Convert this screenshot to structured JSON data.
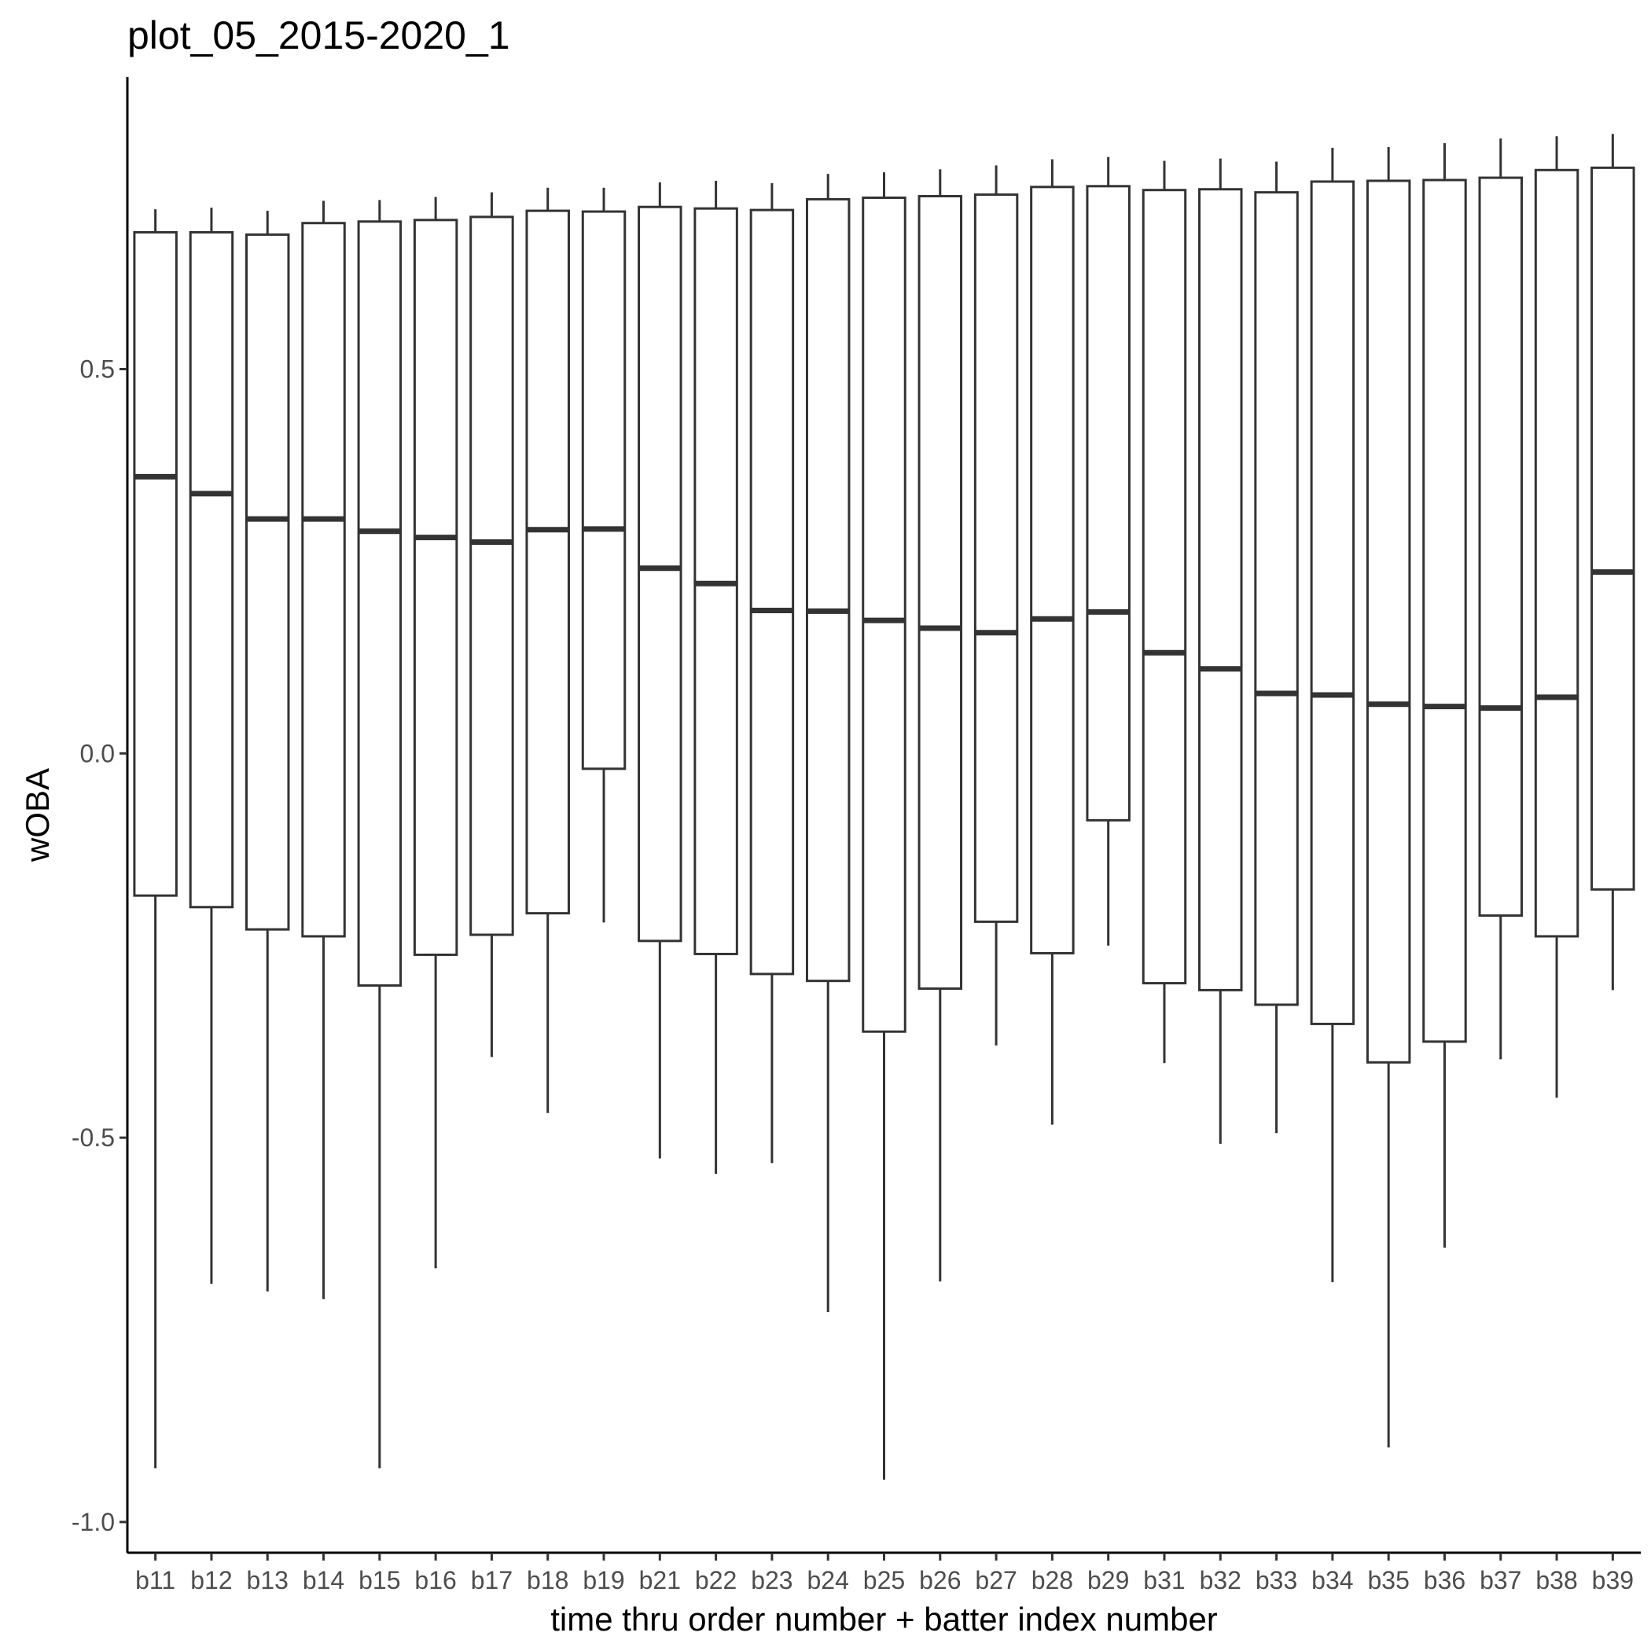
{
  "chart_data": {
    "type": "boxplot",
    "title": "plot_05_2015-2020_1",
    "xlabel": "time thru order number + batter index number",
    "ylabel": "wOBA",
    "ylim": [
      -1.04,
      0.88
    ],
    "yticks": [
      0.5,
      0.0,
      -0.5,
      -1.0
    ],
    "ytick_labels": [
      "0.5",
      "0.0",
      "-0.5",
      "-1.0"
    ],
    "grid": false,
    "legend": "none",
    "colors": {
      "box_stroke": "#333333",
      "box_fill": "#ffffff",
      "axis": "#000000",
      "tick_text": "#4d4d4d"
    },
    "categories": [
      "b11",
      "b12",
      "b13",
      "b14",
      "b15",
      "b16",
      "b17",
      "b18",
      "b19",
      "b21",
      "b22",
      "b23",
      "b24",
      "b25",
      "b26",
      "b27",
      "b28",
      "b29",
      "b31",
      "b32",
      "b33",
      "b34",
      "b35",
      "b36",
      "b37",
      "b38",
      "b39"
    ],
    "boxes": [
      {
        "whisker_low": -0.93,
        "q1": -0.185,
        "median": 0.36,
        "q3": 0.678,
        "whisker_high": 0.708
      },
      {
        "whisker_low": -0.69,
        "q1": -0.2,
        "median": 0.338,
        "q3": 0.678,
        "whisker_high": 0.71
      },
      {
        "whisker_low": -0.7,
        "q1": -0.229,
        "median": 0.305,
        "q3": 0.675,
        "whisker_high": 0.706
      },
      {
        "whisker_low": -0.71,
        "q1": -0.238,
        "median": 0.305,
        "q3": 0.69,
        "whisker_high": 0.719
      },
      {
        "whisker_low": -0.93,
        "q1": -0.302,
        "median": 0.289,
        "q3": 0.692,
        "whisker_high": 0.72
      },
      {
        "whisker_low": -0.67,
        "q1": -0.262,
        "median": 0.281,
        "q3": 0.694,
        "whisker_high": 0.724
      },
      {
        "whisker_low": -0.395,
        "q1": -0.236,
        "median": 0.275,
        "q3": 0.698,
        "whisker_high": 0.73
      },
      {
        "whisker_low": -0.468,
        "q1": -0.208,
        "median": 0.291,
        "q3": 0.706,
        "whisker_high": 0.736
      },
      {
        "whisker_low": -0.22,
        "q1": -0.02,
        "median": 0.292,
        "q3": 0.705,
        "whisker_high": 0.736
      },
      {
        "whisker_low": -0.527,
        "q1": -0.244,
        "median": 0.241,
        "q3": 0.711,
        "whisker_high": 0.743
      },
      {
        "whisker_low": -0.547,
        "q1": -0.261,
        "median": 0.221,
        "q3": 0.709,
        "whisker_high": 0.745
      },
      {
        "whisker_low": -0.533,
        "q1": -0.287,
        "median": 0.186,
        "q3": 0.707,
        "whisker_high": 0.742
      },
      {
        "whisker_low": -0.727,
        "q1": -0.296,
        "median": 0.185,
        "q3": 0.721,
        "whisker_high": 0.754
      },
      {
        "whisker_low": -0.945,
        "q1": -0.362,
        "median": 0.173,
        "q3": 0.723,
        "whisker_high": 0.756
      },
      {
        "whisker_low": -0.687,
        "q1": -0.306,
        "median": 0.163,
        "q3": 0.725,
        "whisker_high": 0.76
      },
      {
        "whisker_low": -0.38,
        "q1": -0.219,
        "median": 0.157,
        "q3": 0.727,
        "whisker_high": 0.765
      },
      {
        "whisker_low": -0.483,
        "q1": -0.26,
        "median": 0.175,
        "q3": 0.737,
        "whisker_high": 0.773
      },
      {
        "whisker_low": -0.25,
        "q1": -0.087,
        "median": 0.184,
        "q3": 0.738,
        "whisker_high": 0.776
      },
      {
        "whisker_low": -0.403,
        "q1": -0.299,
        "median": 0.131,
        "q3": 0.733,
        "whisker_high": 0.771
      },
      {
        "whisker_low": -0.508,
        "q1": -0.308,
        "median": 0.11,
        "q3": 0.734,
        "whisker_high": 0.774
      },
      {
        "whisker_low": -0.494,
        "q1": -0.327,
        "median": 0.078,
        "q3": 0.73,
        "whisker_high": 0.77
      },
      {
        "whisker_low": -0.688,
        "q1": -0.352,
        "median": 0.076,
        "q3": 0.744,
        "whisker_high": 0.788
      },
      {
        "whisker_low": -0.903,
        "q1": -0.402,
        "median": 0.064,
        "q3": 0.745,
        "whisker_high": 0.789
      },
      {
        "whisker_low": -0.643,
        "q1": -0.375,
        "median": 0.061,
        "q3": 0.746,
        "whisker_high": 0.794
      },
      {
        "whisker_low": -0.398,
        "q1": -0.211,
        "median": 0.059,
        "q3": 0.749,
        "whisker_high": 0.8
      },
      {
        "whisker_low": -0.448,
        "q1": -0.238,
        "median": 0.073,
        "q3": 0.759,
        "whisker_high": 0.803
      },
      {
        "whisker_low": -0.308,
        "q1": -0.177,
        "median": 0.236,
        "q3": 0.762,
        "whisker_high": 0.806
      }
    ]
  }
}
